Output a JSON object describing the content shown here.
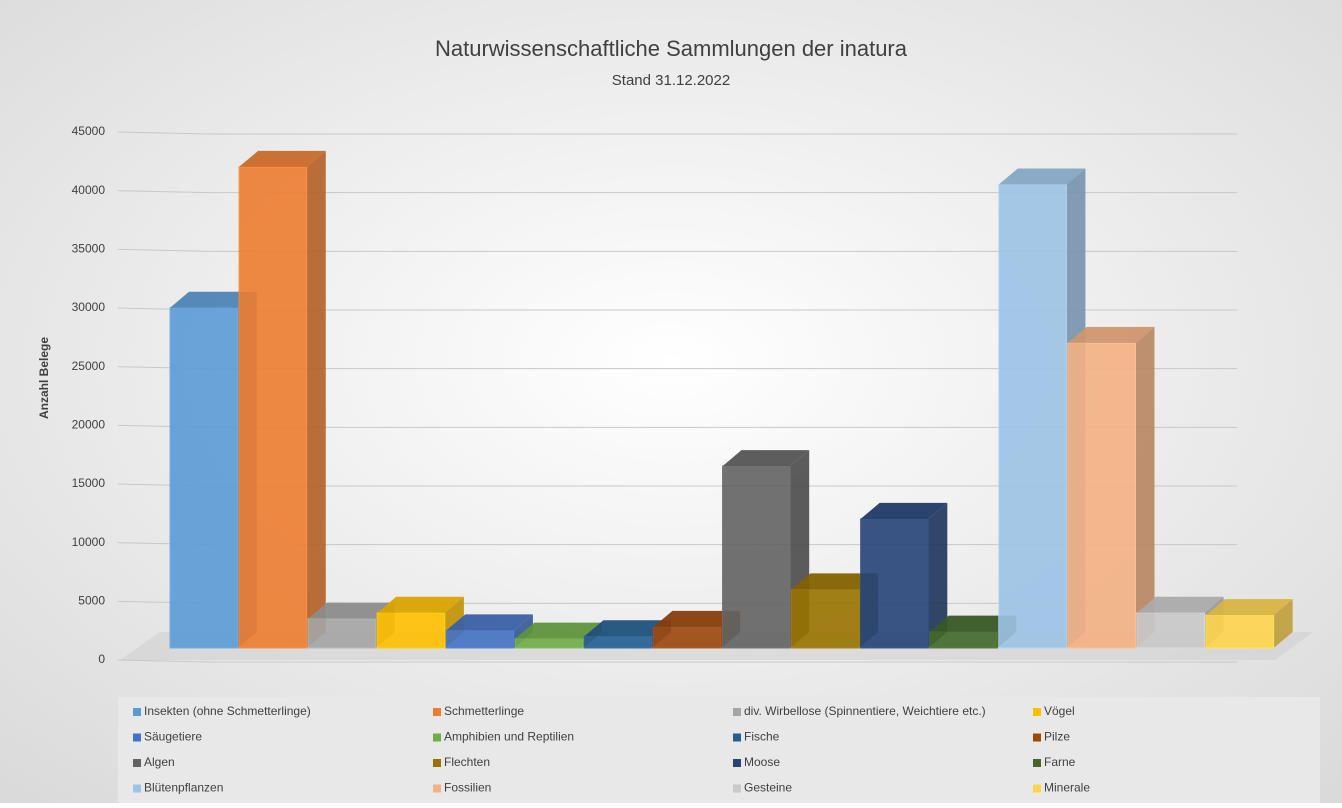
{
  "chart_data": {
    "type": "bar3d",
    "title": "Naturwissenschaftliche Sammlungen der inatura",
    "subtitle": "Stand 31.12.2022",
    "y_label": "Anzahl Belege",
    "ylim": [
      0,
      45000
    ],
    "yticks": [
      0,
      5000,
      10000,
      15000,
      20000,
      25000,
      30000,
      35000,
      40000,
      45000
    ],
    "grid": true,
    "legend": "bottom",
    "series": [
      {
        "name": "Insekten (ohne Schmetterlinge)",
        "color": "#5b9bd5",
        "values": [
          29000
        ]
      },
      {
        "name": "Schmetterlinge",
        "color": "#ed7d31",
        "values": [
          41000
        ]
      },
      {
        "name": "div. Wirbellose (Spinnentiere, Weichtiere etc.)",
        "color": "#a5a5a5",
        "values": [
          2500
        ]
      },
      {
        "name": "Vögel",
        "color": "#ffc000",
        "values": [
          3000
        ]
      },
      {
        "name": "Säugetiere",
        "color": "#4472c4",
        "values": [
          1500
        ]
      },
      {
        "name": "Amphibien und Reptilien",
        "color": "#70ad47",
        "values": [
          800
        ]
      },
      {
        "name": "Fische",
        "color": "#255e91",
        "values": [
          1000
        ]
      },
      {
        "name": "Pilze",
        "color": "#9e480e",
        "values": [
          1800
        ]
      },
      {
        "name": "Algen",
        "color": "#636363",
        "values": [
          15500
        ]
      },
      {
        "name": "Flechten",
        "color": "#997300",
        "values": [
          5000
        ]
      },
      {
        "name": "Moose",
        "color": "#264478",
        "values": [
          11000
        ]
      },
      {
        "name": "Farne",
        "color": "#43682b",
        "values": [
          1400
        ]
      },
      {
        "name": "Blütenpflanzen",
        "color": "#9dc3e6",
        "values": [
          39500
        ]
      },
      {
        "name": "Fossilien",
        "color": "#f4b183",
        "values": [
          26000
        ]
      },
      {
        "name": "Gesteine",
        "color": "#c9c9c9",
        "values": [
          3000
        ]
      },
      {
        "name": "Minerale",
        "color": "#ffd44d",
        "values": [
          2800
        ]
      }
    ]
  }
}
